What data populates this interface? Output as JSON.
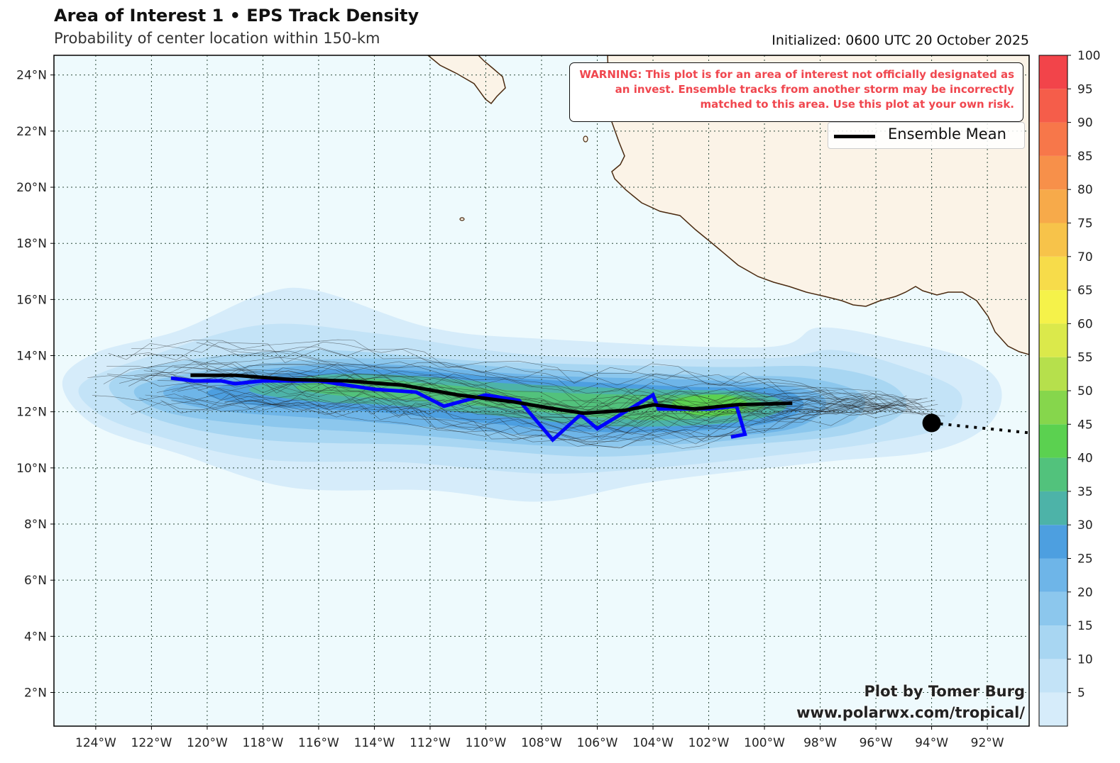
{
  "header": {
    "title": "Area of Interest 1 • EPS Track Density",
    "subtitle": "Probability of center location within 150-km",
    "initialized": "Initialized: 0600 UTC 20 October 2025"
  },
  "warning": {
    "text": "WARNING: This plot is for an area of interest not officially designated as an invest. Ensemble tracks from another storm may be incorrectly matched to this area. Use this plot at your own risk."
  },
  "legend": {
    "label": "Ensemble Mean"
  },
  "credit": {
    "line1": "Plot by Tomer Burg",
    "line2": "www.polarwx.com/tropical/"
  },
  "colors": {
    "ocean": "#eefafd",
    "land": "#fbf3e7",
    "coast": "#4a2a10",
    "ensemble_mean": "#000000",
    "operational_track": "#0000ff",
    "warning_text": "#f0474f"
  },
  "map": {
    "lon_range": [
      -125.5,
      -90.5
    ],
    "lat_range": [
      0.8,
      24.7
    ],
    "lon_ticks": [
      "124°W",
      "122°W",
      "120°W",
      "118°W",
      "116°W",
      "114°W",
      "112°W",
      "110°W",
      "108°W",
      "106°W",
      "104°W",
      "102°W",
      "100°W",
      "98°W",
      "96°W",
      "94°W",
      "92°W"
    ],
    "lat_ticks": [
      "2°N",
      "4°N",
      "6°N",
      "8°N",
      "10°N",
      "12°N",
      "14°N",
      "16°N",
      "18°N",
      "20°N",
      "22°N",
      "24°N"
    ]
  },
  "chart_data": {
    "type": "heatmap",
    "title": "Area of Interest 1 • EPS Track Density",
    "subtitle": "Probability of center location within 150-km",
    "colorbar": {
      "levels": [
        0,
        5,
        10,
        15,
        20,
        25,
        30,
        35,
        40,
        45,
        50,
        55,
        60,
        65,
        70,
        75,
        80,
        85,
        90,
        95,
        100
      ],
      "tick_labels": [
        "5",
        "10",
        "15",
        "20",
        "25",
        "30",
        "35",
        "40",
        "45",
        "50",
        "55",
        "60",
        "65",
        "70",
        "75",
        "80",
        "85",
        "90",
        "95",
        "100"
      ],
      "colors": [
        "#d6ecfa",
        "#c3e3f7",
        "#a8d6f2",
        "#8cc7ed",
        "#6eb5e8",
        "#4d9fe0",
        "#4db3a8",
        "#52c27c",
        "#5bd150",
        "#86d64c",
        "#b6e04c",
        "#dbe94b",
        "#f5f24a",
        "#f7dc4a",
        "#f7c34a",
        "#f7aa4a",
        "#f7904a",
        "#f7774a",
        "#f55d4a",
        "#f2444a"
      ]
    },
    "density_regions": [
      {
        "level": 5,
        "points": [
          [
            -125.2,
            13.0
          ],
          [
            -124.0,
            14.1
          ],
          [
            -121.0,
            14.9
          ],
          [
            -118.0,
            16.2
          ],
          [
            -116.0,
            16.3
          ],
          [
            -112.0,
            15.0
          ],
          [
            -108.0,
            14.6
          ],
          [
            -100.0,
            14.3
          ],
          [
            -98.0,
            15.0
          ],
          [
            -95.0,
            14.5
          ],
          [
            -92.5,
            13.8
          ],
          [
            -91.5,
            12.8
          ],
          [
            -92.0,
            11.5
          ],
          [
            -94.0,
            10.6
          ],
          [
            -98.0,
            10.2
          ],
          [
            -104.0,
            9.5
          ],
          [
            -108.0,
            8.8
          ],
          [
            -112.0,
            9.2
          ],
          [
            -117.0,
            9.3
          ],
          [
            -121.0,
            10.5
          ],
          [
            -124.0,
            11.5
          ]
        ]
      },
      {
        "level": 10,
        "points": [
          [
            -124.5,
            13.0
          ],
          [
            -122.0,
            14.0
          ],
          [
            -118.0,
            15.1
          ],
          [
            -114.0,
            14.8
          ],
          [
            -108.0,
            14.0
          ],
          [
            -100.0,
            13.9
          ],
          [
            -97.5,
            14.2
          ],
          [
            -95.0,
            13.6
          ],
          [
            -93.0,
            12.7
          ],
          [
            -93.5,
            11.5
          ],
          [
            -96.0,
            10.9
          ],
          [
            -100.0,
            10.4
          ],
          [
            -104.0,
            10.0
          ],
          [
            -108.0,
            9.8
          ],
          [
            -113.0,
            10.2
          ],
          [
            -118.0,
            10.3
          ],
          [
            -122.0,
            11.2
          ],
          [
            -124.0,
            12.0
          ]
        ]
      },
      {
        "level": 15,
        "points": [
          [
            -123.5,
            13.0
          ],
          [
            -121.0,
            13.8
          ],
          [
            -116.0,
            14.2
          ],
          [
            -110.0,
            13.8
          ],
          [
            -102.0,
            13.6
          ],
          [
            -98.0,
            13.6
          ],
          [
            -95.5,
            13.0
          ],
          [
            -95.0,
            12.0
          ],
          [
            -97.0,
            11.2
          ],
          [
            -101.0,
            10.8
          ],
          [
            -106.0,
            10.4
          ],
          [
            -112.0,
            10.8
          ],
          [
            -118.0,
            11.0
          ],
          [
            -122.0,
            11.8
          ]
        ]
      },
      {
        "level": 20,
        "points": [
          [
            -122.5,
            12.9
          ],
          [
            -119.0,
            13.6
          ],
          [
            -114.0,
            13.9
          ],
          [
            -108.0,
            13.5
          ],
          [
            -102.0,
            13.3
          ],
          [
            -98.5,
            13.2
          ],
          [
            -96.5,
            12.6
          ],
          [
            -97.0,
            11.6
          ],
          [
            -100.0,
            11.1
          ],
          [
            -104.0,
            10.8
          ],
          [
            -108.0,
            10.8
          ],
          [
            -113.0,
            11.2
          ],
          [
            -118.0,
            11.5
          ],
          [
            -121.5,
            12.0
          ]
        ]
      },
      {
        "level": 25,
        "points": [
          [
            -121.5,
            12.8
          ],
          [
            -118.0,
            13.5
          ],
          [
            -114.0,
            13.7
          ],
          [
            -108.0,
            13.3
          ],
          [
            -101.5,
            13.1
          ],
          [
            -98.5,
            12.8
          ],
          [
            -97.8,
            12.2
          ],
          [
            -99.0,
            11.4
          ],
          [
            -102.0,
            11.1
          ],
          [
            -106.0,
            11.0
          ],
          [
            -110.0,
            11.3
          ],
          [
            -115.0,
            11.7
          ],
          [
            -120.0,
            12.1
          ]
        ]
      },
      {
        "level": 30,
        "points": [
          [
            -120.0,
            12.7
          ],
          [
            -117.0,
            13.4
          ],
          [
            -113.5,
            13.5
          ],
          [
            -109.0,
            13.2
          ],
          [
            -103.0,
            12.9
          ],
          [
            -99.5,
            12.8
          ],
          [
            -98.6,
            12.2
          ],
          [
            -99.8,
            11.6
          ],
          [
            -103.0,
            11.3
          ],
          [
            -106.5,
            11.3
          ],
          [
            -110.0,
            11.6
          ],
          [
            -114.0,
            12.0
          ],
          [
            -118.0,
            12.2
          ]
        ]
      },
      {
        "level": 35,
        "points": [
          [
            -118.5,
            12.8
          ],
          [
            -116.0,
            13.3
          ],
          [
            -113.0,
            13.3
          ],
          [
            -109.0,
            13.0
          ],
          [
            -104.0,
            12.8
          ],
          [
            -100.5,
            12.7
          ],
          [
            -99.2,
            12.2
          ],
          [
            -100.5,
            11.7
          ],
          [
            -103.0,
            11.5
          ],
          [
            -106.0,
            11.5
          ],
          [
            -109.0,
            11.8
          ],
          [
            -113.0,
            12.2
          ],
          [
            -116.5,
            12.4
          ]
        ]
      },
      {
        "level": 40,
        "points": [
          [
            -116.8,
            12.9
          ],
          [
            -114.5,
            13.2
          ],
          [
            -112.0,
            13.0
          ],
          [
            -108.0,
            12.7
          ],
          [
            -104.0,
            12.6
          ],
          [
            -101.0,
            12.6
          ],
          [
            -100.0,
            12.2
          ],
          [
            -101.0,
            11.9
          ],
          [
            -103.5,
            11.7
          ],
          [
            -106.0,
            11.8
          ],
          [
            -109.0,
            12.1
          ],
          [
            -112.5,
            12.4
          ],
          [
            -115.5,
            12.6
          ]
        ]
      },
      {
        "level": 45,
        "points": [
          [
            -103.0,
            12.5
          ],
          [
            -101.5,
            12.6
          ],
          [
            -100.6,
            12.3
          ],
          [
            -101.2,
            11.9
          ],
          [
            -102.6,
            11.9
          ],
          [
            -103.3,
            12.2
          ]
        ]
      }
    ],
    "ensemble_mean_track": {
      "lon": [
        -120.6,
        -119.0,
        -117.0,
        -115.0,
        -113.0,
        -111.0,
        -109.0,
        -107.5,
        -106.5,
        -105.0,
        -104.0,
        -102.5,
        -101.0,
        -99.0
      ],
      "lat": [
        13.3,
        13.3,
        13.15,
        13.1,
        12.95,
        12.6,
        12.35,
        12.1,
        11.95,
        12.05,
        12.25,
        12.1,
        12.25,
        12.3
      ]
    },
    "operational_track": {
      "lon": [
        -121.3,
        -120.5,
        -119.5,
        -119.0,
        -118.0,
        -116.0,
        -114.0,
        -112.5,
        -111.5,
        -110.0,
        -108.8,
        -107.6,
        -106.6,
        -106.0,
        -104.0,
        -103.8,
        -102.0,
        -101.0,
        -100.7,
        -101.2
      ],
      "lat": [
        13.2,
        13.1,
        13.1,
        13.0,
        13.1,
        13.1,
        12.8,
        12.7,
        12.2,
        12.6,
        12.4,
        11.0,
        11.9,
        11.4,
        12.6,
        12.1,
        12.1,
        12.2,
        11.2,
        11.1
      ]
    },
    "current_position": {
      "lon": -94.0,
      "lat": 11.6
    },
    "forward_extension": {
      "lon": [
        -94.0,
        -90.5
      ],
      "lat": [
        11.6,
        11.25
      ]
    }
  }
}
